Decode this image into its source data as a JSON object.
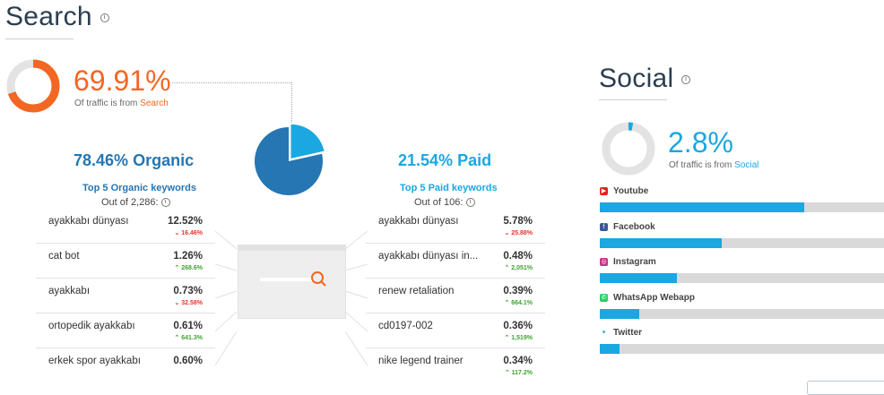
{
  "search": {
    "title": "Search",
    "percent": "69.91%",
    "percent_value": 69.91,
    "caption_prefix": "Of traffic is from",
    "caption_source": "Search",
    "organic": {
      "percent": "78.46%",
      "label": "Organic",
      "share": 78.46,
      "keywords_title": "Top 5 Organic keywords",
      "out_of": "Out of 2,286:",
      "rows": [
        {
          "keyword": "ayakkabı dünyası",
          "percent": "12.52%",
          "change": "16.46%",
          "dir": "down"
        },
        {
          "keyword": "cat bot",
          "percent": "1.26%",
          "change": "268.6%",
          "dir": "up"
        },
        {
          "keyword": "ayakkabı",
          "percent": "0.73%",
          "change": "32.58%",
          "dir": "down"
        },
        {
          "keyword": "ortopedik ayakkabı",
          "percent": "0.61%",
          "change": "641.3%",
          "dir": "up"
        },
        {
          "keyword": "erkek spor ayakkabı",
          "percent": "0.60%",
          "change": "",
          "dir": ""
        }
      ]
    },
    "paid": {
      "percent": "21.54%",
      "label": "Paid",
      "share": 21.54,
      "keywords_title": "Top 5 Paid keywords",
      "out_of": "Out of 106:",
      "rows": [
        {
          "keyword": "ayakkabı dünyası",
          "percent": "5.78%",
          "change": "25.88%",
          "dir": "down"
        },
        {
          "keyword": "ayakkabı dünyası in...",
          "percent": "0.48%",
          "change": "2,051%",
          "dir": "up"
        },
        {
          "keyword": "renew retaliation",
          "percent": "0.39%",
          "change": "664.1%",
          "dir": "up"
        },
        {
          "keyword": "cd0197-002",
          "percent": "0.36%",
          "change": "1,519%",
          "dir": "up"
        },
        {
          "keyword": "nike legend trainer",
          "percent": "0.34%",
          "change": "117.2%",
          "dir": "up"
        }
      ]
    },
    "colors": {
      "accent": "#f26722",
      "organic": "#2576b3",
      "paid": "#1ba7e0"
    }
  },
  "social": {
    "title": "Social",
    "percent": "2.8%",
    "percent_value": 2.8,
    "caption_prefix": "Of traffic is from",
    "caption_source": "Social",
    "networks": [
      {
        "name": "Youtube",
        "icon": "youtube-icon",
        "share": 0.72
      },
      {
        "name": "Facebook",
        "icon": "facebook-icon",
        "share": 0.43
      },
      {
        "name": "Instagram",
        "icon": "instagram-icon",
        "share": 0.27
      },
      {
        "name": "WhatsApp Webapp",
        "icon": "whatsapp-icon",
        "share": 0.14
      },
      {
        "name": "Twitter",
        "icon": "twitter-icon",
        "share": 0.07
      }
    ]
  }
}
